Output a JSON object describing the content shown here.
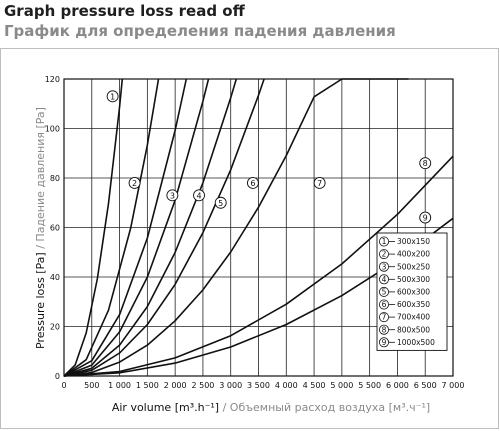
{
  "header": {
    "title_en": "Graph pressure loss read off",
    "title_ru": "График для определения падения давления"
  },
  "chart_data": {
    "type": "line",
    "xlim": [
      0,
      7000
    ],
    "ylim": [
      0,
      120
    ],
    "x_ticks": [
      "0",
      "500",
      "1 000",
      "1 500",
      "2 000",
      "2 500",
      "3 000",
      "3 500",
      "4 000",
      "4 500",
      "5 000",
      "5 500",
      "6 000",
      "6 500",
      "7 000"
    ],
    "y_ticks": [
      "0",
      "20",
      "40",
      "60",
      "80",
      "100",
      "120"
    ],
    "xlabel_en": "Air volume [m³.h⁻¹]",
    "xlabel_sep": " / ",
    "xlabel_ru": "Объемный расход воздуха [м³.ч⁻¹]",
    "ylabel_en": "Pressure loss [Pa]",
    "ylabel_sep": " / ",
    "ylabel_ru": "Падение давления [Pa]",
    "grid": true,
    "legend_position": "bottom-right",
    "series": [
      {
        "marker": "1",
        "name": "300x150",
        "x": [
          0,
          200,
          400,
          600,
          800,
          1000,
          1050
        ],
        "y": [
          0,
          4.4,
          17.4,
          39.2,
          69.7,
          108.8,
          120
        ]
      },
      {
        "marker": "2",
        "name": "400x200",
        "x": [
          0,
          400,
          800,
          1200,
          1500,
          1700
        ],
        "y": [
          0,
          6.6,
          26.6,
          59.8,
          93.4,
          120
        ]
      },
      {
        "marker": "3",
        "name": "500x250",
        "x": [
          0,
          500,
          1000,
          1500,
          2000,
          2200
        ],
        "y": [
          0,
          6.2,
          24.8,
          55.8,
          99.2,
          120
        ]
      },
      {
        "marker": "4",
        "name": "500x300",
        "x": [
          0,
          500,
          1000,
          1500,
          2000,
          2500,
          2600
        ],
        "y": [
          0,
          4.4,
          17.8,
          40.0,
          71.0,
          111.0,
          120
        ]
      },
      {
        "marker": "5",
        "name": "600x300",
        "x": [
          0,
          500,
          1000,
          1500,
          2000,
          2500,
          3000,
          3100
        ],
        "y": [
          0,
          3.1,
          12.5,
          28.1,
          49.9,
          78.0,
          112.4,
          120
        ]
      },
      {
        "marker": "6",
        "name": "600x350",
        "x": [
          0,
          500,
          1000,
          1500,
          2000,
          2500,
          3000,
          3500,
          3600
        ],
        "y": [
          0,
          2.3,
          9.3,
          20.8,
          37.0,
          57.9,
          83.3,
          113.4,
          120
        ]
      },
      {
        "marker": "7",
        "name": "700x400",
        "x": [
          0,
          500,
          1000,
          1500,
          2000,
          2500,
          3000,
          3500,
          4000,
          4500,
          5000,
          5500,
          6000,
          6200
        ],
        "y": [
          0,
          1.4,
          5.6,
          12.5,
          22.3,
          34.8,
          50.1,
          68.2,
          89.1,
          112.8,
          120,
          120,
          120,
          120
        ]
      },
      {
        "marker": "8",
        "name": "800x500",
        "x": [
          0,
          1000,
          2000,
          3000,
          4000,
          5000,
          6000,
          7000
        ],
        "y": [
          0,
          1.8,
          7.3,
          16.3,
          29.0,
          45.3,
          65.3,
          88.8
        ]
      },
      {
        "marker": "9",
        "name": "1000x500",
        "x": [
          0,
          1000,
          2000,
          3000,
          4000,
          5000,
          6000,
          7000
        ],
        "y": [
          0,
          1.3,
          5.2,
          11.7,
          20.8,
          32.5,
          46.8,
          63.7
        ]
      }
    ]
  }
}
